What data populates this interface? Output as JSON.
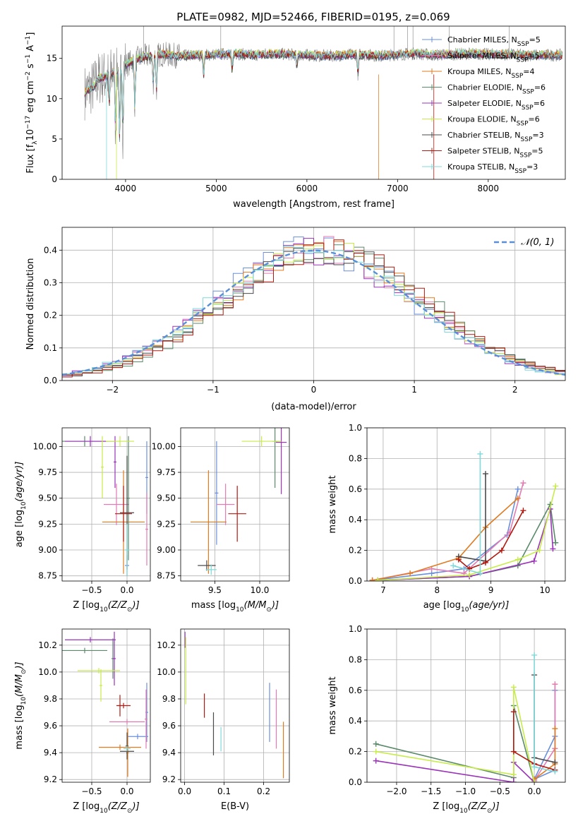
{
  "title": "PLATE=0982, MJD=52466, FIBERID=0195, z=0.069",
  "colors": {
    "Chabrier MILES": "#6a8fdc",
    "Salpeter MILES": "#e37bb3",
    "Kroupa MILES": "#e07b22",
    "Chabrier ELODIE": "#5b8a6b",
    "Salpeter ELODIE": "#9a33b8",
    "Kroupa ELODIE": "#c8ec4c",
    "Chabrier STELIB": "#4a4a4a",
    "Salpeter STELIB": "#b01a10",
    "Kroupa STELIB": "#7fd9d9",
    "data": "#808080",
    "gaussian": "#5a8fd8"
  },
  "legend_spectrum": [
    {
      "name": "Chabrier MILES",
      "pre": "Chabrier MILES, N",
      "sub": "SSP",
      "post": "=5"
    },
    {
      "name": "Salpeter MILES",
      "pre": "Salpeter MILES, N",
      "sub": "SSP",
      "post": "=5"
    },
    {
      "name": "Kroupa MILES",
      "pre": "Kroupa MILES, N",
      "sub": "SSP",
      "post": "=4"
    },
    {
      "name": "Chabrier ELODIE",
      "pre": "Chabrier ELODIE, N",
      "sub": "SSP",
      "post": "=6"
    },
    {
      "name": "Salpeter ELODIE",
      "pre": "Salpeter ELODIE, N",
      "sub": "SSP",
      "post": "=6"
    },
    {
      "name": "Kroupa ELODIE",
      "pre": "Kroupa ELODIE, N",
      "sub": "SSP",
      "post": "=6"
    },
    {
      "name": "Chabrier STELIB",
      "pre": "Chabrier STELIB, N",
      "sub": "SSP",
      "post": "=3"
    },
    {
      "name": "Salpeter STELIB",
      "pre": "Salpeter STELIB, N",
      "sub": "SSP",
      "post": "=5"
    },
    {
      "name": "Kroupa STELIB",
      "pre": "Kroupa STELIB, N",
      "sub": "SSP",
      "post": "=3"
    }
  ],
  "legend_hist": "𝒩(0, 1)",
  "chart_data": [
    {
      "id": "spectrum",
      "type": "line",
      "xlabel": "wavelength [Angstrom, rest frame]",
      "ylabel_parts": {
        "a": "Flux [f",
        "b": "λ",
        "c": "10",
        "d": "−17",
        "e": " erg cm",
        "f": "−2",
        "g": " s",
        "h": "−1",
        "i": " A",
        "j": "−1",
        "k": "]"
      },
      "xlim": [
        3300,
        8850
      ],
      "ylim": [
        0,
        19
      ],
      "xticks": [
        4000,
        5000,
        6000,
        7000,
        8000
      ],
      "yticks": [
        0,
        5,
        10,
        15
      ],
      "continuum": [
        [
          3550,
          10.8
        ],
        [
          3650,
          11.5
        ],
        [
          3700,
          12.5
        ],
        [
          3800,
          12.8
        ],
        [
          3900,
          13.5
        ],
        [
          4000,
          14.2
        ],
        [
          4100,
          14.8
        ],
        [
          4200,
          15.2
        ],
        [
          4400,
          15.5
        ],
        [
          4600,
          15.3
        ],
        [
          4800,
          15.4
        ],
        [
          5000,
          15.5
        ],
        [
          5200,
          15.6
        ],
        [
          5400,
          15.4
        ],
        [
          5600,
          15.6
        ],
        [
          5800,
          15.5
        ],
        [
          6000,
          15.4
        ],
        [
          6200,
          15.3
        ],
        [
          6400,
          15.4
        ],
        [
          6600,
          15.5
        ],
        [
          6800,
          15.3
        ],
        [
          7000,
          15.5
        ],
        [
          7200,
          15.6
        ],
        [
          7400,
          15.4
        ],
        [
          7600,
          15.5
        ],
        [
          7800,
          15.6
        ],
        [
          8000,
          15.5
        ],
        [
          8200,
          15.5
        ],
        [
          8400,
          15.4
        ],
        [
          8820,
          15.4
        ]
      ],
      "absorption": [
        [
          3820,
          9.5
        ],
        [
          3889,
          6.5
        ],
        [
          3934,
          5.0
        ],
        [
          3970,
          6.0
        ],
        [
          4102,
          9.0
        ],
        [
          4305,
          12.0
        ],
        [
          4340,
          11.0
        ],
        [
          4861,
          13.0
        ],
        [
          5175,
          13.5
        ],
        [
          5890,
          14.0
        ],
        [
          6563,
          13.0
        ]
      ]
    },
    {
      "id": "residual_hist",
      "type": "line",
      "xlabel": "(data-model)/error",
      "ylabel": "Normed distribution",
      "xlim": [
        -2.5,
        2.5
      ],
      "ylim": [
        0,
        0.47
      ],
      "xticks": [
        -2,
        -1,
        0,
        1,
        2
      ],
      "yticks": [
        0.0,
        0.1,
        0.2,
        0.3,
        0.4
      ],
      "bin_width": 0.1
    },
    {
      "id": "age_vs_Z",
      "type": "scatter",
      "xlabel_parts": {
        "a": "Z [log",
        "b": "10",
        "c": "(Z/Z",
        "d": "⊙",
        "e": ")]"
      },
      "ylabel_parts": {
        "a": "age  [log",
        "b": "10",
        "c": "(age/yr)]"
      },
      "xlim": [
        -0.92,
        0.33
      ],
      "ylim": [
        8.7,
        10.18
      ],
      "xticks": [
        -0.5,
        0.0
      ],
      "yticks": [
        8.75,
        9.0,
        9.25,
        9.5,
        9.75,
        10.0
      ],
      "points": [
        {
          "name": "Chabrier MILES",
          "x": 0.0,
          "y": 8.85,
          "xerr": 0.03,
          "yerr": 0.1
        },
        {
          "name": "Chabrier MILES",
          "x": 0.28,
          "y": 9.7,
          "xerr": 0.02,
          "yerr": 0.35
        },
        {
          "name": "Salpeter MILES",
          "x": -0.15,
          "y": 9.44,
          "xerr": 0.18,
          "yerr": 0.2
        },
        {
          "name": "Salpeter MILES",
          "x": 0.28,
          "y": 9.2,
          "xerr": 0.02,
          "yerr": 0.35
        },
        {
          "name": "Kroupa MILES",
          "x": -0.05,
          "y": 9.27,
          "xerr": 0.3,
          "yerr": 0.5
        },
        {
          "name": "Chabrier ELODIE",
          "x": -0.6,
          "y": 10.05,
          "xerr": 0.32,
          "yerr": 0.05
        },
        {
          "name": "Chabrier ELODIE",
          "x": 0.02,
          "y": 9.5,
          "xerr": 0.02,
          "yerr": 0.6
        },
        {
          "name": "Salpeter ELODIE",
          "x": -0.52,
          "y": 10.05,
          "xerr": 0.36,
          "yerr": 0.05
        },
        {
          "name": "Salpeter ELODIE",
          "x": -0.17,
          "y": 9.85,
          "xerr": 0.02,
          "yerr": 0.25
        },
        {
          "name": "Kroupa ELODIE",
          "x": -0.1,
          "y": 10.05,
          "xerr": 0.2,
          "yerr": 0.05
        },
        {
          "name": "Kroupa ELODIE",
          "x": -0.35,
          "y": 9.8,
          "xerr": 0.02,
          "yerr": 0.3
        },
        {
          "name": "Chabrier STELIB",
          "x": 0.0,
          "y": 9.36,
          "xerr": 0.1,
          "yerr": 0.55
        },
        {
          "name": "Salpeter STELIB",
          "x": -0.05,
          "y": 9.35,
          "xerr": 0.12,
          "yerr": 0.27
        },
        {
          "name": "Kroupa STELIB",
          "x": 0.0,
          "y": 9.0,
          "xerr": 0.03,
          "yerr": 0.25
        }
      ]
    },
    {
      "id": "age_vs_mass",
      "type": "scatter",
      "xlabel_parts": {
        "a": "mass [log",
        "b": "10",
        "c": "(M/M",
        "d": "⊙",
        "e": ")]"
      },
      "xlim": [
        9.12,
        10.33
      ],
      "ylim": [
        8.7,
        10.18
      ],
      "xticks": [
        9.5,
        10.0
      ],
      "yticks": [
        8.75,
        9.0,
        9.25,
        9.5,
        9.75,
        10.0
      ],
      "points": [
        {
          "name": "Chabrier MILES",
          "x": 9.52,
          "y": 9.55,
          "xerr": 0.02,
          "yerr": 0.5
        },
        {
          "name": "Salpeter MILES",
          "x": 9.62,
          "y": 9.44,
          "xerr": 0.1,
          "yerr": 0.2
        },
        {
          "name": "Kroupa MILES",
          "x": 9.43,
          "y": 9.27,
          "xerr": 0.2,
          "yerr": 0.5
        },
        {
          "name": "Chabrier ELODIE",
          "x": 10.17,
          "y": 10.05,
          "xerr": 0.03,
          "yerr": 0.45
        },
        {
          "name": "Salpeter ELODIE",
          "x": 10.24,
          "y": 10.04,
          "xerr": 0.06,
          "yerr": 0.5
        },
        {
          "name": "Kroupa ELODIE",
          "x": 10.02,
          "y": 10.05,
          "xerr": 0.22,
          "yerr": 0.05
        },
        {
          "name": "Chabrier STELIB",
          "x": 9.41,
          "y": 8.85,
          "xerr": 0.1,
          "yerr": 0.05
        },
        {
          "name": "Salpeter STELIB",
          "x": 9.75,
          "y": 9.35,
          "xerr": 0.1,
          "yerr": 0.27
        },
        {
          "name": "Kroupa STELIB",
          "x": 9.46,
          "y": 8.81,
          "xerr": 0.06,
          "yerr": 0.05
        }
      ]
    },
    {
      "id": "weight_vs_age",
      "type": "line",
      "xlabel_parts": {
        "a": "age  [log",
        "b": "10",
        "c": "(age/yr)]"
      },
      "ylabel": "mass weight",
      "xlim": [
        6.7,
        10.38
      ],
      "ylim": [
        0,
        1.0
      ],
      "xticks": [
        7,
        8,
        9,
        10
      ],
      "yticks": [
        0.0,
        0.2,
        0.4,
        0.6,
        0.8,
        1.0
      ],
      "series": [
        {
          "name": "Chabrier MILES",
          "x": [
            6.8,
            7.9,
            8.5,
            9.3,
            9.5
          ],
          "y": [
            0.005,
            0.05,
            0.08,
            0.3,
            0.6
          ]
        },
        {
          "name": "Salpeter MILES",
          "x": [
            6.8,
            7.9,
            8.5,
            9.35,
            9.6
          ],
          "y": [
            0.005,
            0.08,
            0.05,
            0.32,
            0.64
          ]
        },
        {
          "name": "Kroupa MILES",
          "x": [
            6.8,
            7.5,
            8.4,
            8.9,
            9.5
          ],
          "y": [
            0.005,
            0.05,
            0.15,
            0.35,
            0.54
          ]
        },
        {
          "name": "Chabrier ELODIE",
          "x": [
            6.9,
            8.6,
            9.5,
            10.1,
            10.2
          ],
          "y": [
            0.005,
            0.03,
            0.1,
            0.5,
            0.25
          ]
        },
        {
          "name": "Salpeter ELODIE",
          "x": [
            6.9,
            8.6,
            9.8,
            10.1,
            10.15
          ],
          "y": [
            0.005,
            0.03,
            0.13,
            0.47,
            0.21
          ]
        },
        {
          "name": "Kroupa ELODIE",
          "x": [
            6.9,
            8.6,
            9.5,
            9.9,
            10.2
          ],
          "y": [
            0.005,
            0.04,
            0.14,
            0.2,
            0.62
          ]
        },
        {
          "name": "Chabrier STELIB",
          "x": [
            8.4,
            8.9,
            8.9
          ],
          "y": [
            0.16,
            0.13,
            0.7
          ]
        },
        {
          "name": "Salpeter STELIB",
          "x": [
            8.4,
            8.6,
            8.9,
            9.2,
            9.6
          ],
          "y": [
            0.14,
            0.08,
            0.12,
            0.2,
            0.46
          ]
        },
        {
          "name": "Kroupa STELIB",
          "x": [
            8.3,
            8.8,
            8.8
          ],
          "y": [
            0.1,
            0.05,
            0.83
          ]
        }
      ]
    },
    {
      "id": "mass_vs_Z",
      "type": "scatter",
      "xlabel_parts": {
        "a": "Z [log",
        "b": "10",
        "c": "(Z/Z",
        "d": "⊙",
        "e": ")]"
      },
      "ylabel_parts": {
        "a": "mass [log",
        "b": "10",
        "c": "(M/M",
        "d": "⊙",
        "e": ")]"
      },
      "xlim": [
        -0.92,
        0.33
      ],
      "ylim": [
        9.18,
        10.32
      ],
      "xticks": [
        -0.5,
        0.0
      ],
      "yticks": [
        9.2,
        9.4,
        9.6,
        9.8,
        10.0,
        10.2
      ],
      "points": [
        {
          "name": "Chabrier MILES",
          "x": 0.15,
          "y": 9.52,
          "xerr": 0.15,
          "yerr": 0.02
        },
        {
          "name": "Chabrier MILES",
          "x": 0.28,
          "y": 9.7,
          "xerr": 0.02,
          "yerr": 0.22
        },
        {
          "name": "Salpeter MILES",
          "x": 0.0,
          "y": 9.63,
          "xerr": 0.25,
          "yerr": 0.02
        },
        {
          "name": "Salpeter MILES",
          "x": 0.27,
          "y": 9.65,
          "xerr": 0.02,
          "yerr": 0.22
        },
        {
          "name": "Kroupa MILES",
          "x": -0.1,
          "y": 9.44,
          "xerr": 0.3,
          "yerr": 0.02
        },
        {
          "name": "Kroupa MILES",
          "x": 0.01,
          "y": 9.4,
          "xerr": 0.02,
          "yerr": 0.18
        },
        {
          "name": "Chabrier ELODIE",
          "x": -0.6,
          "y": 10.16,
          "xerr": 0.32,
          "yerr": 0.02
        },
        {
          "name": "Chabrier ELODIE",
          "x": -0.2,
          "y": 10.1,
          "xerr": 0.02,
          "yerr": 0.15
        },
        {
          "name": "Salpeter ELODIE",
          "x": -0.52,
          "y": 10.24,
          "xerr": 0.36,
          "yerr": 0.02
        },
        {
          "name": "Salpeter ELODIE",
          "x": -0.18,
          "y": 10.1,
          "xerr": 0.02,
          "yerr": 0.2
        },
        {
          "name": "Kroupa ELODIE",
          "x": -0.4,
          "y": 10.01,
          "xerr": 0.3,
          "yerr": 0.02
        },
        {
          "name": "Kroupa ELODIE",
          "x": -0.37,
          "y": 9.9,
          "xerr": 0.02,
          "yerr": 0.12
        },
        {
          "name": "Chabrier STELIB",
          "x": 0.0,
          "y": 9.41,
          "xerr": 0.1,
          "yerr": 0.02
        },
        {
          "name": "Chabrier STELIB",
          "x": 0.0,
          "y": 9.45,
          "xerr": 0.02,
          "yerr": 0.1
        },
        {
          "name": "Salpeter STELIB",
          "x": -0.05,
          "y": 9.75,
          "xerr": 0.1,
          "yerr": 0.02
        },
        {
          "name": "Salpeter STELIB",
          "x": -0.1,
          "y": 9.75,
          "xerr": 0.02,
          "yerr": 0.08
        },
        {
          "name": "Kroupa STELIB",
          "x": 0.0,
          "y": 9.43,
          "xerr": 0.05,
          "yerr": 0.02
        }
      ]
    },
    {
      "id": "mass_vs_ebv",
      "type": "scatter",
      "xlabel": "E(B-V)",
      "xlim": [
        -0.01,
        0.265
      ],
      "ylim": [
        9.18,
        10.32
      ],
      "xticks": [
        0.0,
        0.1,
        0.2
      ],
      "yticks": [
        9.2,
        9.4,
        9.6,
        9.8,
        10.0,
        10.2
      ],
      "points": [
        {
          "name": "Salpeter ELODIE",
          "x": 0.001,
          "y": 10.24,
          "xerr": 0,
          "yerr": 0.06
        },
        {
          "name": "Kroupa ELODIE",
          "x": 0.003,
          "y": 10.01,
          "xerr": 0,
          "yerr": 0.25
        },
        {
          "name": "Salpeter STELIB",
          "x": 0.05,
          "y": 9.75,
          "xerr": 0,
          "yerr": 0.09
        },
        {
          "name": "Chabrier STELIB",
          "x": 0.073,
          "y": 9.54,
          "xerr": 0,
          "yerr": 0.16
        },
        {
          "name": "Kroupa STELIB",
          "x": 0.092,
          "y": 9.5,
          "xerr": 0,
          "yerr": 0.09
        },
        {
          "name": "Chabrier MILES",
          "x": 0.215,
          "y": 9.7,
          "xerr": 0,
          "yerr": 0.22
        },
        {
          "name": "Salpeter MILES",
          "x": 0.232,
          "y": 9.65,
          "xerr": 0,
          "yerr": 0.22
        },
        {
          "name": "Kroupa MILES",
          "x": 0.25,
          "y": 9.42,
          "xerr": 0,
          "yerr": 0.21
        }
      ]
    },
    {
      "id": "weight_vs_Z",
      "type": "line",
      "xlabel_parts": {
        "a": "Z [log",
        "b": "10",
        "c": "(Z/Z",
        "d": "⊙",
        "e": ")]"
      },
      "ylabel": "mass weight",
      "xlim": [
        -2.43,
        0.45
      ],
      "ylim": [
        0,
        1.0
      ],
      "xticks": [
        -2.0,
        -1.5,
        -1.0,
        -0.5,
        0.0
      ],
      "yticks": [
        0.0,
        0.2,
        0.4,
        0.6,
        0.8,
        1.0
      ],
      "series": [
        {
          "name": "Chabrier MILES",
          "x": [
            0.3,
            0.3,
            0.0,
            0.3
          ],
          "y": [
            0.6,
            0.3,
            0.02,
            0.08
          ]
        },
        {
          "name": "Salpeter MILES",
          "x": [
            0.3,
            0.3,
            0.0
          ],
          "y": [
            0.64,
            0.22,
            0.01
          ]
        },
        {
          "name": "Kroupa MILES",
          "x": [
            0.3,
            0.3,
            0.0
          ],
          "y": [
            0.35,
            0.12,
            0.02
          ]
        },
        {
          "name": "Chabrier ELODIE",
          "x": [
            -2.3,
            -0.3,
            -0.3,
            0.0
          ],
          "y": [
            0.25,
            0.03,
            0.5,
            0.0
          ]
        },
        {
          "name": "Salpeter ELODIE",
          "x": [
            -2.3,
            -0.3,
            -0.3,
            0.0
          ],
          "y": [
            0.14,
            0.0,
            0.13,
            0.0
          ]
        },
        {
          "name": "Kroupa ELODIE",
          "x": [
            -2.3,
            -0.3,
            -0.3,
            0.0
          ],
          "y": [
            0.2,
            0.05,
            0.62,
            0.0
          ]
        },
        {
          "name": "Chabrier STELIB",
          "x": [
            0.0,
            0.0,
            0.3
          ],
          "y": [
            0.7,
            0.16,
            0.13
          ]
        },
        {
          "name": "Salpeter STELIB",
          "x": [
            -0.3,
            -0.3,
            0.0,
            0.3
          ],
          "y": [
            0.46,
            0.2,
            0.12,
            0.08
          ]
        },
        {
          "name": "Kroupa STELIB",
          "x": [
            0.0,
            0.0,
            0.3
          ],
          "y": [
            0.83,
            0.1,
            0.07
          ]
        }
      ]
    }
  ]
}
